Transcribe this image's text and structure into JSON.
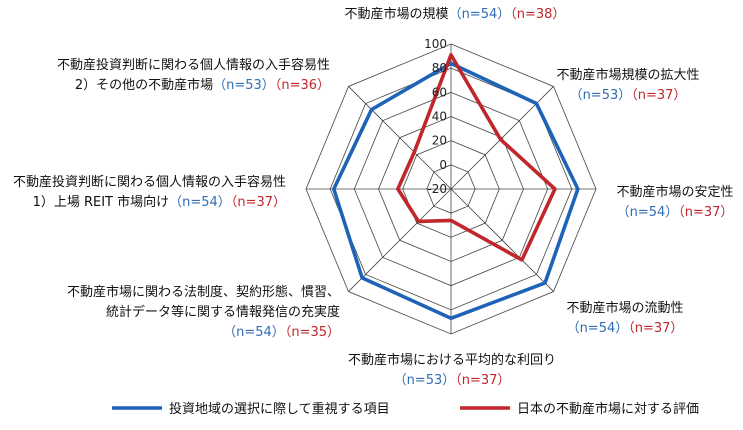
{
  "chart_data": {
    "type": "radar",
    "axes": [
      {
        "label_lines": [
          "不動産市場の規模"
        ],
        "n_blue": "（n=54）",
        "n_red": "（n=38）"
      },
      {
        "label_lines": [
          "不動産市場規模の拡大性"
        ],
        "n_blue": "（n=53）",
        "n_red": "（n=37）"
      },
      {
        "label_lines": [
          "不動産市場の安定性"
        ],
        "n_blue": "（n=54）",
        "n_red": "（n=37）"
      },
      {
        "label_lines": [
          "不動産市場の流動性"
        ],
        "n_blue": "（n=54）",
        "n_red": "（n=37）"
      },
      {
        "label_lines": [
          "不動産市場における平均的な利回り"
        ],
        "n_blue": "（n=53）",
        "n_red": "（n=37）"
      },
      {
        "label_lines": [
          "不動産市場に関わる法制度、契約形態、慣習、",
          "統計データ等に関する情報発信の充実度"
        ],
        "n_blue": "（n=54）",
        "n_red": "（n=35）"
      },
      {
        "label_lines": [
          "不動産投資判断に関わる個人情報の入手容易性",
          "1）上場 REIT 市場向け"
        ],
        "n_blue": "（n=54）",
        "n_red": "（n=37）"
      },
      {
        "label_lines": [
          "不動産投資判断に関わる個人情報の入手容易性",
          "2）その他の不動産市場"
        ],
        "n_blue": "（n=53）",
        "n_red": "（n=36）"
      }
    ],
    "rmin": -20,
    "rmax": 100,
    "ticks": [
      -20,
      0,
      20,
      40,
      60,
      80,
      100
    ],
    "series": [
      {
        "name": "投資地域の選択に際して重視する項目",
        "color": "#1f63b8",
        "values": [
          84,
          80,
          85,
          90,
          87,
          84,
          77,
          73
        ]
      },
      {
        "name": "日本の不動産市場に対する評価",
        "color": "#c0262c",
        "values": [
          91,
          38,
          66,
          63,
          6,
          18,
          24,
          23
        ]
      }
    ],
    "legend_position": "bottom"
  }
}
